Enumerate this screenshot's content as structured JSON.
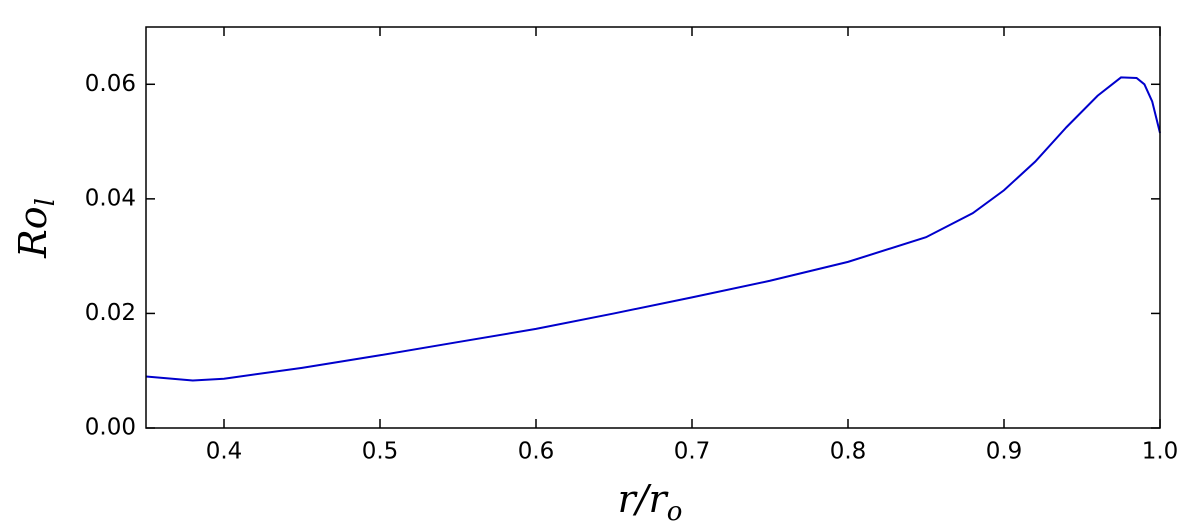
{
  "chart_data": {
    "type": "line",
    "xlabel": {
      "base": "r/r",
      "sub": "o"
    },
    "ylabel": {
      "base": "Ro",
      "sub": "l"
    },
    "x": [
      0.35,
      0.38,
      0.4,
      0.45,
      0.5,
      0.55,
      0.6,
      0.65,
      0.7,
      0.75,
      0.8,
      0.85,
      0.88,
      0.9,
      0.92,
      0.94,
      0.96,
      0.975,
      0.985,
      0.99,
      0.995,
      1.0
    ],
    "series": [
      {
        "color": "#0000cc",
        "values": [
          0.009,
          0.0083,
          0.0086,
          0.0105,
          0.0127,
          0.015,
          0.0173,
          0.02,
          0.0228,
          0.0257,
          0.029,
          0.0333,
          0.0375,
          0.0415,
          0.0465,
          0.0525,
          0.058,
          0.0612,
          0.0611,
          0.06,
          0.057,
          0.0515
        ]
      }
    ],
    "xlim": [
      0.35,
      1.0
    ],
    "ylim": [
      0,
      0.07
    ],
    "xticks": [
      0.4,
      0.5,
      0.6,
      0.7,
      0.8,
      0.9,
      {
        "value": 1.0,
        "label": "1.0"
      }
    ],
    "yticks": [
      {
        "value": 0,
        "label": "0.00"
      },
      0.02,
      0.04,
      0.06
    ],
    "grid": false
  }
}
